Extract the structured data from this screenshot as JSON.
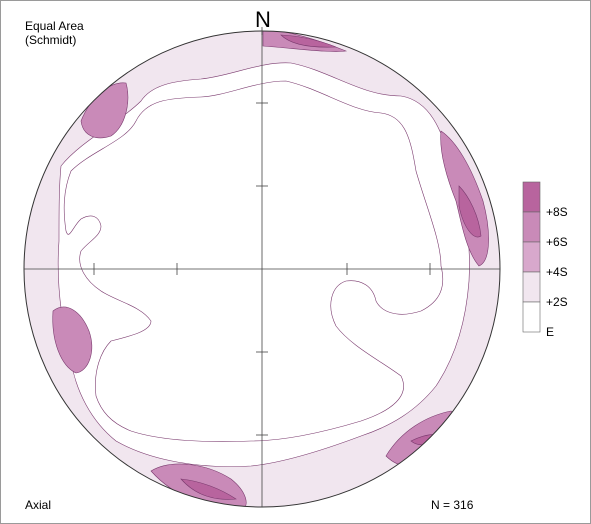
{
  "projection": {
    "line1": "Equal Area",
    "line2": "(Schmidt)"
  },
  "north_label": "N",
  "data_type": "Axial",
  "count_label": "N = 316",
  "legend": {
    "levels": [
      {
        "label": "+8S",
        "color": "#b8649e"
      },
      {
        "label": "+6S",
        "color": "#c98ab8"
      },
      {
        "label": "+4S",
        "color": "#d8a8cc"
      },
      {
        "label": "+2S",
        "color": "#f1e6ef"
      },
      {
        "label": "E",
        "color": "#ffffff"
      }
    ]
  },
  "colors": {
    "c8": "#b8649e",
    "c6": "#c98ab8",
    "c4": "#d8a8cc",
    "c2": "#f1e6ef",
    "e": "#ffffff"
  }
}
